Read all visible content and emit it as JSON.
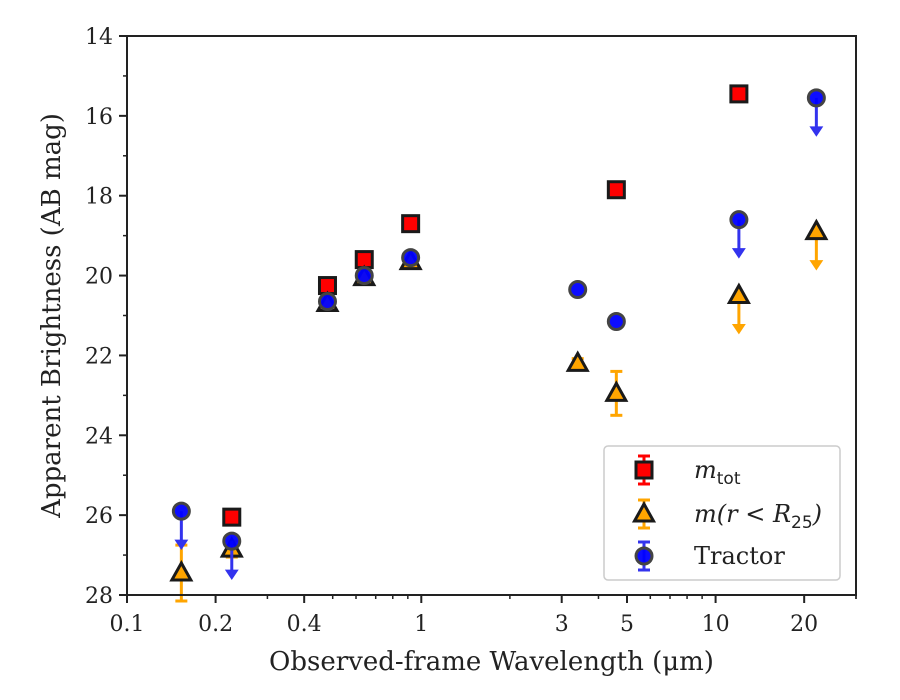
{
  "chart_data": {
    "type": "scatter",
    "title": "",
    "xlabel": "Observed-frame Wavelength (μm)",
    "ylabel": "Apparent Brightness (AB mag)",
    "x_scale": "log",
    "xlim": [
      0.1,
      30
    ],
    "ylim": [
      28,
      14
    ],
    "y_inverted": true,
    "x_ticks": [
      0.1,
      0.2,
      0.4,
      1,
      3,
      5,
      10,
      20
    ],
    "x_tick_labels": [
      "0.1",
      "0.2",
      "0.4",
      "1",
      "3",
      "5",
      "10",
      "20"
    ],
    "y_ticks": [
      14,
      16,
      18,
      20,
      22,
      24,
      26,
      28
    ],
    "y_tick_labels": [
      "14",
      "16",
      "18",
      "20",
      "22",
      "24",
      "26",
      "28"
    ],
    "grid": false,
    "legend_position": "bottom-right",
    "legend": {
      "entries": [
        {
          "key": "m_tot",
          "math": "m",
          "sub": "tot"
        },
        {
          "key": "m_r25",
          "math": "m(r < R",
          "sub": "25",
          "close": ")"
        },
        {
          "key": "tractor",
          "text": "Tractor"
        }
      ]
    },
    "series": [
      {
        "name": "m_tot",
        "marker": "square",
        "color": "#ff0000",
        "error_color": "#ff0000",
        "points": [
          {
            "x": 0.227,
            "y": 26.05,
            "err": 0.15,
            "upper_limit": false
          },
          {
            "x": 0.48,
            "y": 20.25,
            "err": 0,
            "upper_limit": false
          },
          {
            "x": 0.64,
            "y": 19.6,
            "err": 0,
            "upper_limit": false
          },
          {
            "x": 0.92,
            "y": 18.7,
            "err": 0,
            "upper_limit": false
          },
          {
            "x": 4.6,
            "y": 17.85,
            "err": 0,
            "upper_limit": false
          },
          {
            "x": 12.0,
            "y": 15.45,
            "err": 0,
            "upper_limit": false
          }
        ]
      },
      {
        "name": "m(r<R25)",
        "marker": "triangle",
        "color": "#ffa500",
        "error_color": "#ffa500",
        "points": [
          {
            "x": 0.153,
            "y": 27.45,
            "err": 0.7,
            "upper_limit": false
          },
          {
            "x": 0.227,
            "y": 26.85,
            "err": 0.2,
            "upper_limit": false
          },
          {
            "x": 0.48,
            "y": 20.7,
            "err": 0,
            "upper_limit": false
          },
          {
            "x": 0.64,
            "y": 20.05,
            "err": 0,
            "upper_limit": false
          },
          {
            "x": 0.92,
            "y": 19.65,
            "err": 0,
            "upper_limit": false
          },
          {
            "x": 3.4,
            "y": 22.2,
            "err": 0.12,
            "upper_limit": false
          },
          {
            "x": 4.6,
            "y": 22.95,
            "err": 0.55,
            "upper_limit": false
          },
          {
            "x": 12.0,
            "y": 20.5,
            "upper_limit": true
          },
          {
            "x": 22.0,
            "y": 18.9,
            "upper_limit": true
          }
        ]
      },
      {
        "name": "Tractor",
        "marker": "circle",
        "color": "#0000ff",
        "error_color": "#3333ee",
        "points": [
          {
            "x": 0.153,
            "y": 25.9,
            "upper_limit": true
          },
          {
            "x": 0.227,
            "y": 26.65,
            "upper_limit": true
          },
          {
            "x": 0.48,
            "y": 20.65,
            "err": 0,
            "upper_limit": false
          },
          {
            "x": 0.64,
            "y": 20.0,
            "err": 0,
            "upper_limit": false
          },
          {
            "x": 0.92,
            "y": 19.55,
            "err": 0,
            "upper_limit": false
          },
          {
            "x": 3.4,
            "y": 20.35,
            "err": 0,
            "upper_limit": false
          },
          {
            "x": 4.6,
            "y": 21.15,
            "err": 0,
            "upper_limit": false
          },
          {
            "x": 12.0,
            "y": 18.6,
            "upper_limit": true
          },
          {
            "x": 22.0,
            "y": 15.55,
            "upper_limit": true
          }
        ]
      }
    ]
  }
}
